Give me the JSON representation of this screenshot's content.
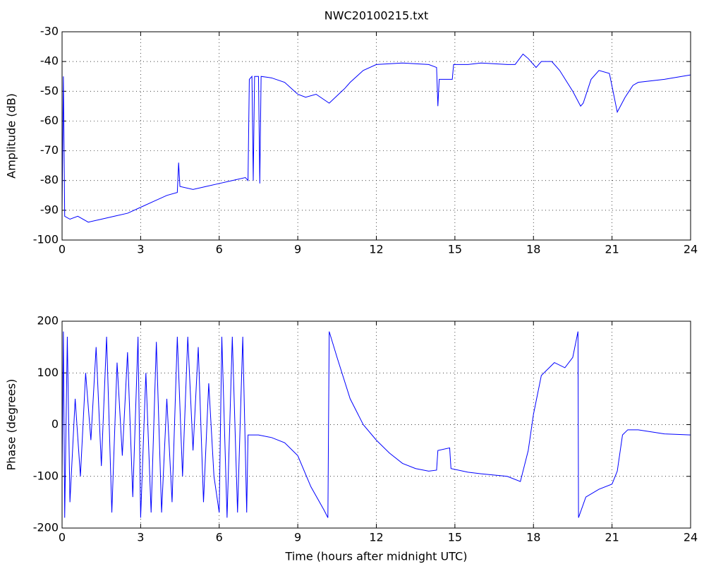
{
  "chart_data": [
    {
      "type": "line",
      "title": "NWC20100215.txt",
      "y_label": "Amplitude (dB)",
      "xlim": [
        0,
        24
      ],
      "xticks": [
        0,
        3,
        6,
        9,
        12,
        15,
        18,
        21,
        24
      ],
      "ylim": [
        -100,
        -30
      ],
      "yticks": [
        -100,
        -90,
        -80,
        -70,
        -60,
        -50,
        -40,
        -30
      ],
      "grid": true,
      "series": [
        {
          "color": "#0000ff",
          "x": [
            0,
            0.05,
            0.1,
            0.3,
            0.6,
            1,
            1.5,
            2,
            2.5,
            3,
            3.5,
            4,
            4.4,
            4.45,
            4.5,
            5,
            5.5,
            6,
            6.5,
            7,
            7.1,
            7.15,
            7.25,
            7.3,
            7.35,
            7.5,
            7.55,
            7.6,
            8,
            8.5,
            9,
            9.3,
            9.7,
            10.2,
            10.8,
            11,
            11.5,
            12,
            13,
            14,
            14.3,
            14.35,
            14.4,
            14.9,
            14.95,
            15.5,
            16,
            17,
            17.3,
            17.6,
            17.8,
            18.1,
            18.3,
            18.7,
            19,
            19.5,
            19.8,
            19.9,
            20.2,
            20.5,
            20.9,
            21.2,
            21.5,
            21.8,
            22,
            23,
            24
          ],
          "values": [
            -90,
            -45,
            -92,
            -93,
            -92,
            -94,
            -93,
            -92,
            -91,
            -89,
            -87,
            -85,
            -84,
            -74,
            -82,
            -83,
            -82,
            -81,
            -80,
            -79,
            -80,
            -46,
            -45,
            -80,
            -45,
            -45,
            -81,
            -45,
            -45.5,
            -47,
            -51,
            -52,
            -51,
            -54,
            -49,
            -47,
            -43,
            -41,
            -40.5,
            -41,
            -42,
            -55,
            -46,
            -46,
            -41,
            -41,
            -40.5,
            -41,
            -41,
            -37.5,
            -39,
            -42,
            -40,
            -40,
            -43,
            -50,
            -55,
            -54,
            -46,
            -43,
            -44,
            -57,
            -52,
            -48,
            -47,
            -46,
            -44.5
          ]
        }
      ]
    },
    {
      "type": "line",
      "x_label": "Time (hours after midnight UTC)",
      "y_label": "Phase (degrees)",
      "xlim": [
        0,
        24
      ],
      "xticks": [
        0,
        3,
        6,
        9,
        12,
        15,
        18,
        21,
        24
      ],
      "ylim": [
        -200,
        200
      ],
      "yticks": [
        -200,
        -100,
        0,
        100,
        200
      ],
      "grid": true,
      "series": [
        {
          "color": "#0000ff",
          "x": [
            0,
            0.05,
            0.1,
            0.2,
            0.3,
            0.5,
            0.7,
            0.9,
            1.1,
            1.3,
            1.5,
            1.7,
            1.9,
            2.1,
            2.3,
            2.5,
            2.7,
            2.9,
            3,
            3.2,
            3.4,
            3.6,
            3.8,
            4,
            4.2,
            4.4,
            4.6,
            4.8,
            5,
            5.2,
            5.4,
            5.6,
            5.8,
            6,
            6.1,
            6.3,
            6.5,
            6.7,
            6.9,
            7.05,
            7.1,
            7.5,
            8,
            8.5,
            9,
            9.5,
            10,
            10.15,
            10.2,
            10.5,
            11,
            11.5,
            12,
            12.5,
            13,
            13.5,
            14,
            14.3,
            14.35,
            14.8,
            14.85,
            15.5,
            16,
            17,
            17.5,
            17.8,
            18,
            18.3,
            18.8,
            19.2,
            19.5,
            19.7,
            19.72,
            20,
            20.5,
            21,
            21.2,
            21.4,
            21.6,
            22,
            23,
            24
          ],
          "values": [
            -100,
            180,
            -180,
            170,
            -150,
            50,
            -100,
            100,
            -30,
            150,
            -80,
            170,
            -170,
            120,
            -60,
            140,
            -140,
            170,
            -180,
            100,
            -170,
            160,
            -170,
            50,
            -150,
            170,
            -100,
            170,
            -50,
            150,
            -150,
            80,
            -100,
            -170,
            170,
            -180,
            170,
            -170,
            170,
            -170,
            -20,
            -20,
            -25,
            -35,
            -60,
            -120,
            -165,
            -180,
            180,
            130,
            50,
            0,
            -30,
            -55,
            -75,
            -85,
            -90,
            -88,
            -50,
            -45,
            -85,
            -92,
            -95,
            -100,
            -110,
            -50,
            20,
            95,
            120,
            110,
            130,
            180,
            -180,
            -140,
            -125,
            -115,
            -90,
            -20,
            -10,
            -10,
            -18,
            -20
          ]
        }
      ]
    }
  ]
}
